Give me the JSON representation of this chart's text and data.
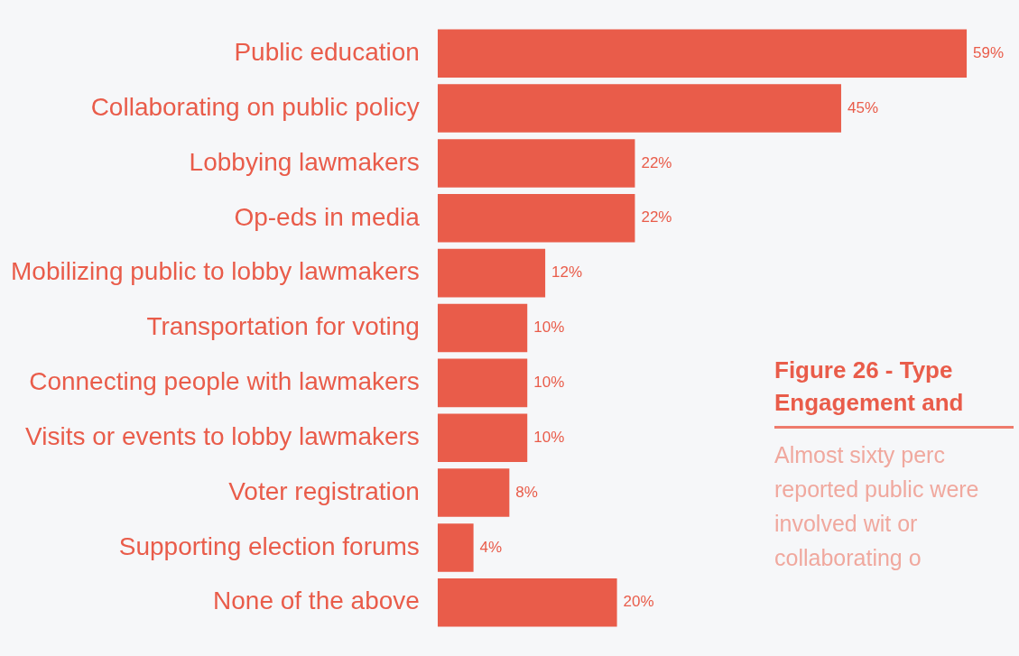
{
  "chart_data": {
    "type": "bar",
    "orientation": "horizontal",
    "title": "Figure 26 - Type Engagement and",
    "annotations": [
      "Almost sixty perc reported public were involved wit or collaborating o"
    ],
    "categories": [
      "Public education",
      "Collaborating on public policy",
      "Lobbying lawmakers",
      "Op-eds in media",
      "Mobilizing public to lobby lawmakers",
      "Transportation for voting",
      "Connecting people with lawmakers",
      "Visits or events to lobby lawmakers",
      "Voter registration",
      "Supporting election forums",
      "None of the above"
    ],
    "values": [
      59,
      45,
      22,
      22,
      12,
      10,
      10,
      10,
      8,
      4,
      20
    ],
    "value_labels": [
      "59%",
      "45%",
      "22%",
      "22%",
      "12%",
      "10%",
      "10%",
      "10%",
      "8%",
      "4%",
      "20%"
    ],
    "color": "#e95c4a",
    "legend": false
  }
}
